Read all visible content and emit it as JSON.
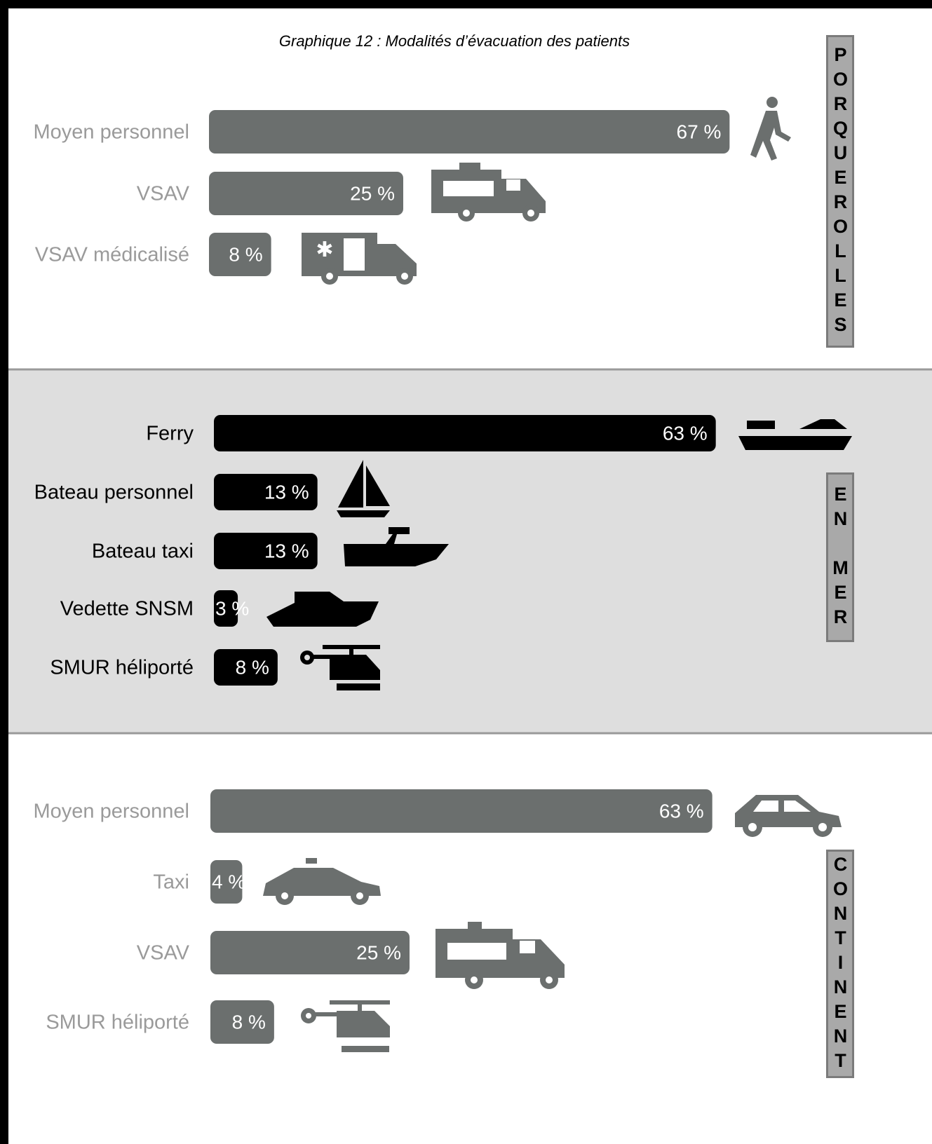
{
  "title": "Graphique 12 : Modalités d’évacuation des patients",
  "chart_data": [
    {
      "type": "bar",
      "section": "PORQUEROLLES",
      "color": "#6b6f6e",
      "categories": [
        "Moyen personnel",
        "VSAV",
        "VSAV médicalisé"
      ],
      "values": [
        67,
        25,
        8
      ],
      "value_labels": [
        "67 %",
        "25 %",
        "8 %"
      ]
    },
    {
      "type": "bar",
      "section": "EN MER",
      "color": "#000000",
      "categories": [
        "Ferry",
        "Bateau personnel",
        "Bateau taxi",
        "Vedette SNSM",
        "SMUR héliporté"
      ],
      "values": [
        63,
        13,
        13,
        3,
        8
      ],
      "value_labels": [
        "63 %",
        "13 %",
        "13 %",
        "3 %",
        "8 %"
      ]
    },
    {
      "type": "bar",
      "section": "CONTINENT",
      "color": "#6b6f6e",
      "categories": [
        "Moyen personnel",
        "Taxi",
        "VSAV",
        "SMUR héliporté"
      ],
      "values": [
        63,
        4,
        25,
        8
      ],
      "value_labels": [
        "63 %",
        "4 %",
        "25 %",
        "8 %"
      ]
    }
  ]
}
